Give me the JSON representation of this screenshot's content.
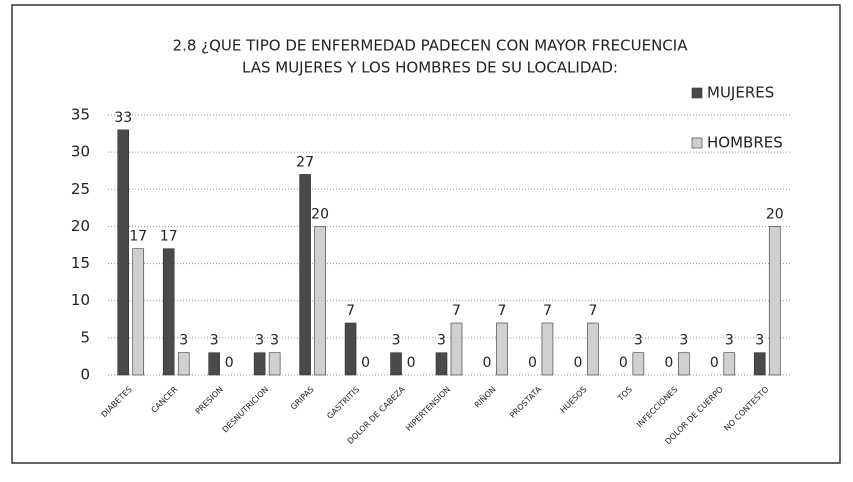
{
  "chart_data": {
    "type": "bar",
    "title": [
      "2.8 ¿QUE TIPO DE ENFERMEDAD PADECEN CON MAYOR FRECUENCIA",
      "LAS MUJERES Y LOS HOMBRES DE SU LOCALIDAD:"
    ],
    "categories": [
      "DIABETES",
      "CANCER",
      "PRESION",
      "DESNUTRICION",
      "GRIPAS",
      "GASTRITIS",
      "DOLOR DE CABEZA",
      "HIPERTENSION",
      "RIÑON",
      "PROSTATA",
      "HUESOS",
      "TOS",
      "INFECCIONES",
      "DOLOR DE CUERPO",
      "NO CONTESTO"
    ],
    "series": [
      {
        "name": "MUJERES",
        "color": "#4a4a4a",
        "values": [
          33,
          17,
          3,
          3,
          27,
          7,
          3,
          3,
          0,
          0,
          0,
          0,
          0,
          0,
          3
        ]
      },
      {
        "name": "HOMBRES",
        "color": "#d0d0d0",
        "values": [
          17,
          3,
          0,
          3,
          20,
          0,
          0,
          7,
          7,
          7,
          7,
          3,
          3,
          3,
          20
        ]
      }
    ],
    "ylim": [
      0,
      35
    ],
    "yticks": [
      0,
      5,
      10,
      15,
      20,
      25,
      30,
      35
    ],
    "grid": true,
    "legend": "top-right"
  }
}
